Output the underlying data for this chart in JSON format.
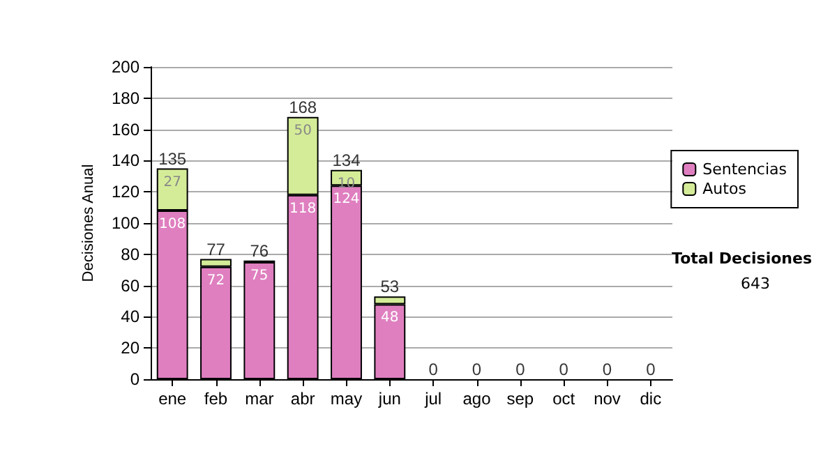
{
  "chart_data": {
    "type": "bar",
    "stacked": true,
    "ylabel": "Decisiones Anual",
    "categories": [
      "ene",
      "feb",
      "mar",
      "abr",
      "may",
      "jun",
      "jul",
      "ago",
      "sep",
      "oct",
      "nov",
      "dic"
    ],
    "series": [
      {
        "name": "Sentencias",
        "color": "#df7fc0",
        "values": [
          108,
          72,
          75,
          118,
          124,
          48,
          0,
          0,
          0,
          0,
          0,
          0
        ],
        "value_labels": [
          "108",
          "72",
          "75",
          "118",
          "124",
          "48",
          null,
          null,
          null,
          null,
          null,
          null
        ]
      },
      {
        "name": "Autos",
        "color": "#d4ec98",
        "values": [
          27,
          5,
          1,
          50,
          10,
          5,
          0,
          0,
          0,
          0,
          0,
          0
        ],
        "value_labels": [
          "27",
          null,
          null,
          "50",
          "10",
          null,
          null,
          null,
          null,
          null,
          null,
          null
        ]
      }
    ],
    "totals": [
      "135",
      "77",
      "76",
      "168",
      "134",
      "53",
      "0",
      "0",
      "0",
      "0",
      "0",
      "0"
    ],
    "ylim": [
      0,
      200
    ],
    "yticks": [
      0,
      20,
      40,
      60,
      80,
      100,
      120,
      140,
      160,
      180,
      200
    ],
    "grid": "y",
    "legend": "right",
    "annotations": [
      "Total Decisiones",
      "643"
    ]
  }
}
